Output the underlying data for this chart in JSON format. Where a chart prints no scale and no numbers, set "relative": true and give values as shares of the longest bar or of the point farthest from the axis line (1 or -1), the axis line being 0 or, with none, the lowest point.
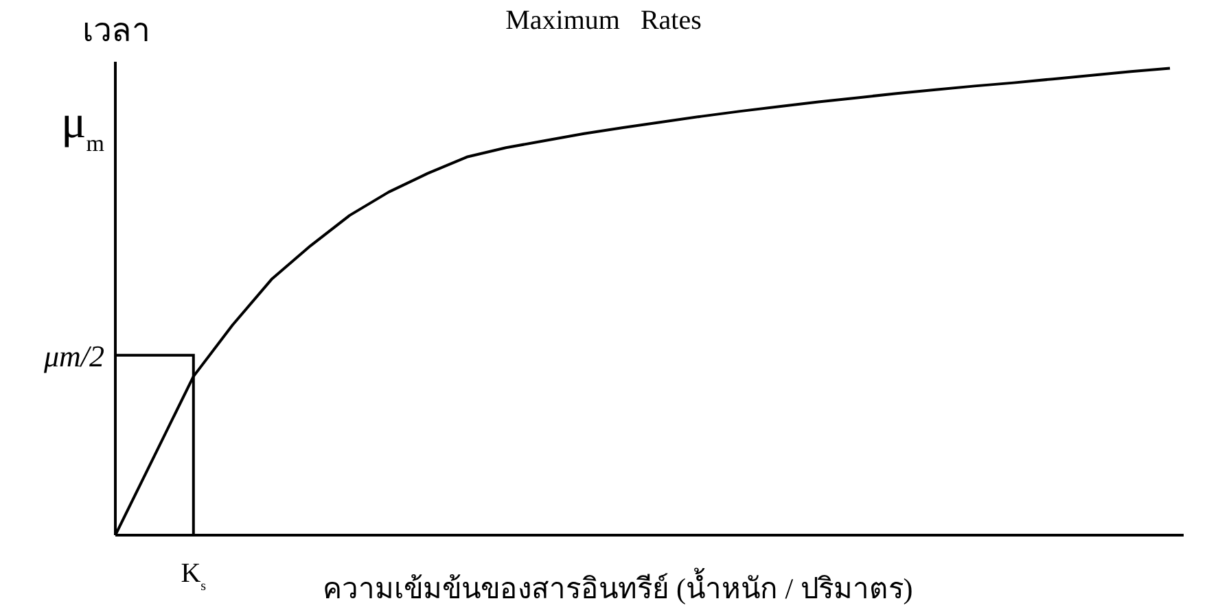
{
  "chart_data": {
    "type": "line",
    "title": "Maximum   Rates",
    "ylabel": "เวลา",
    "xlabel": "ความเข้มข้นของสารอินทรีย์ (น้ำหนัก / ปริมาตร)",
    "relative": true,
    "marker": "none",
    "line_style": "solid",
    "annotations": [
      "μ$_{m}$",
      "μm/2",
      "K$_{s}$"
    ],
    "categories": [
      null,
      null,
      null,
      null,
      null,
      null,
      null,
      null,
      null,
      null,
      null,
      null,
      null,
      null,
      null,
      null,
      null,
      null,
      null,
      null,
      null,
      null,
      null,
      null,
      null,
      null,
      null,
      null
    ],
    "series": [
      {
        "color": "#000000",
        "values": [
          0,
          0.17,
          0.34,
          0.45,
          0.548,
          0.62,
          0.685,
          0.735,
          0.775,
          0.81,
          0.83,
          0.845,
          0.86,
          0.873,
          0.885,
          0.897,
          0.908,
          0.918,
          0.928,
          0.937,
          0.946,
          0.954,
          0.962,
          0.969,
          0.977,
          0.985,
          0.993,
          1
        ]
      }
    ]
  }
}
